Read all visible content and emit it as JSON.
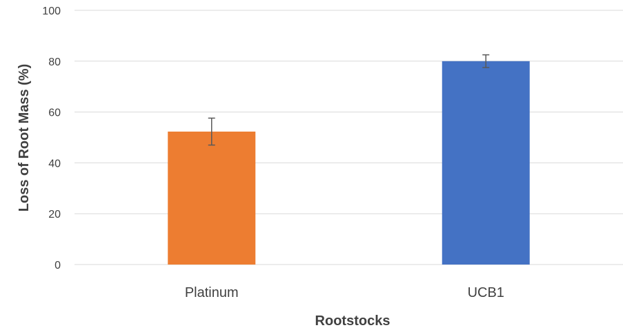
{
  "chart_data": {
    "type": "bar",
    "categories": [
      "Platinum",
      "UCB1"
    ],
    "values": [
      52.3,
      80.0
    ],
    "error": [
      5.3,
      2.5
    ],
    "colors": [
      "#ED7D31",
      "#4472C4"
    ],
    "title": "",
    "xlabel": "Rootstocks",
    "ylabel": "Loss of Root Mass (%)",
    "ylim": [
      0,
      100
    ],
    "yticks": [
      0,
      20,
      40,
      60,
      80,
      100
    ],
    "grid": true,
    "legend": "none"
  }
}
